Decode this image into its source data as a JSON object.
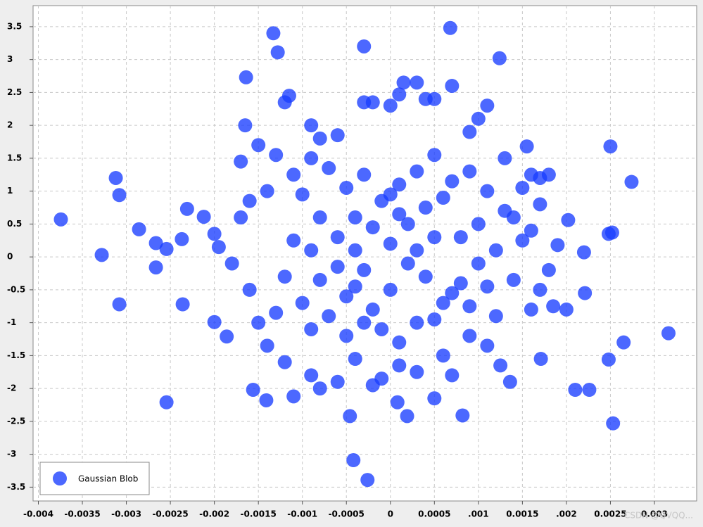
{
  "chart_data": {
    "type": "scatter",
    "xlim": [
      -0.00406,
      0.00348
    ],
    "ylim": [
      -3.71,
      3.82
    ],
    "xticks": [
      -0.004,
      -0.0035,
      -0.003,
      -0.0025,
      -0.002,
      -0.0015,
      -0.001,
      -0.0005,
      0,
      0.0005,
      {
        "value": 0.001,
        "label": ".001"
      },
      0.0015,
      {
        "value": 0.002,
        "label": ".002"
      },
      0.0025,
      0.003
    ],
    "yticks": [
      -3.5,
      -3,
      -2.5,
      -2,
      -1.5,
      -1,
      -0.5,
      0,
      0.5,
      1,
      1.5,
      2,
      2.5,
      3,
      3.5
    ],
    "grid": true,
    "legend": "bottom-left",
    "watermark": "CSDN @QVQQ...",
    "series": [
      {
        "name": "Gaussian Blob",
        "color": "#1a3dff",
        "x": [
          -0.003744,
          -0.00328,
          -0.00312,
          -0.00308,
          -0.00308,
          -0.002856,
          -0.002664,
          -0.002664,
          -0.002544,
          -0.002544,
          -0.00237,
          -0.00231,
          -0.00236,
          -0.00212,
          -0.002,
          -0.00186,
          -0.00164,
          -0.00133,
          -0.00128,
          -0.0003,
          0.00068,
          0.00124,
          0.0025,
          0.00274,
          0.00248,
          0.00252,
          0.00316,
          0.00265,
          0.00248,
          0.00253,
          0.0021,
          0.00226,
          0.00082,
          -0.00046,
          -0.00042,
          -0.00026,
          -0.00141,
          -0.00156,
          -0.0011,
          0.00136,
          0.00171,
          0.0022,
          0.00202,
          0.00221,
          0.00019,
          8e-05,
          -0.0012,
          -0.00115,
          -0.0009,
          -0.0008,
          -0.0006,
          -0.0003,
          -0.0002,
          0,
          0.0001,
          0.00015,
          0.0003,
          0.0004,
          0.0005,
          0.0007,
          0.0011,
          0.001,
          0.0009,
          0.0013,
          0.00155,
          0.0016,
          0.0018,
          0.0017,
          0.0015,
          0.0017,
          0.0014,
          0.0015,
          0.0019,
          0.0018,
          0.0017,
          0.00185,
          0.002,
          0.0016,
          0.0014,
          0.0012,
          0.0011,
          0.00125,
          0.0009,
          0.0007,
          0.0005,
          0.0003,
          0.0001,
          -0.0001,
          -0.0002,
          -0.0004,
          -0.0006,
          -0.0008,
          -0.0009,
          -0.0012,
          -0.0014,
          -0.0015,
          -0.0016,
          -0.0018,
          -0.00195,
          -0.002,
          -0.0017,
          -0.0016,
          -0.0014,
          -0.0013,
          -0.0015,
          -0.0017,
          -0.00165,
          -0.0011,
          -0.001,
          -0.0008,
          -0.0006,
          -0.0004,
          -0.0002,
          0,
          0.0002,
          0.0004,
          0.0006,
          0.0008,
          0.001,
          0.0008,
          0.0006,
          0.0004,
          0.0002,
          0,
          -0.0002,
          -0.0004,
          -0.0006,
          -0.0008,
          -0.001,
          -0.0012,
          -0.0011,
          -0.0009,
          -0.0007,
          -0.0005,
          -0.0003,
          -0.0001,
          0.0001,
          0.0003,
          0.0005,
          0.0007,
          0.0009,
          0.0011,
          0.0012,
          0.001,
          0.0011,
          0.0009,
          0.0007,
          0.0005,
          0.0003,
          0.0001,
          -0.0001,
          -0.0003,
          -0.0005,
          -0.0007,
          -0.0009,
          -0.0004,
          0,
          0.0003,
          0.0005,
          -0.0005,
          -0.0003,
          0.0001,
          -0.0009,
          0.0006,
          -0.0013,
          0.0013,
          0.0016
        ],
        "values": [
          0.57,
          0.03,
          1.2,
          0.94,
          -0.72,
          0.42,
          0.21,
          -0.16,
          0.12,
          -2.21,
          0.27,
          0.73,
          -0.72,
          0.61,
          -0.99,
          -1.21,
          2.73,
          3.4,
          3.11,
          3.2,
          3.48,
          3.02,
          1.68,
          1.14,
          0.35,
          0.37,
          -1.16,
          -1.3,
          -1.56,
          -2.53,
          -2.02,
          -2.02,
          -2.41,
          -2.42,
          -3.09,
          -3.39,
          -2.18,
          -2.02,
          -2.12,
          -1.9,
          -1.55,
          0.07,
          0.56,
          -0.55,
          -2.42,
          -2.21,
          2.35,
          2.45,
          2.0,
          1.8,
          1.85,
          2.35,
          2.35,
          2.3,
          2.47,
          2.65,
          2.65,
          2.4,
          2.4,
          2.6,
          2.3,
          2.1,
          1.9,
          1.5,
          1.68,
          1.25,
          1.25,
          1.2,
          1.05,
          0.8,
          0.6,
          0.25,
          0.18,
          -0.2,
          -0.5,
          -0.75,
          -0.8,
          -0.8,
          -0.35,
          -0.9,
          -1.35,
          -1.65,
          -1.2,
          -1.8,
          -2.15,
          -1.75,
          -1.65,
          -1.85,
          -1.95,
          -1.55,
          -1.9,
          -2.0,
          -1.8,
          -1.6,
          -1.35,
          -1.0,
          -0.5,
          -0.1,
          0.15,
          0.35,
          0.6,
          0.85,
          1.0,
          1.55,
          1.7,
          1.45,
          2.0,
          1.25,
          0.95,
          0.6,
          0.3,
          0.1,
          0.45,
          0.2,
          0.5,
          0.75,
          0.9,
          0.3,
          -0.1,
          -0.4,
          -0.7,
          -0.3,
          -0.1,
          -0.5,
          -0.8,
          -0.45,
          -0.15,
          -0.35,
          -0.7,
          -0.3,
          0.25,
          0.1,
          -0.9,
          -1.2,
          -1.0,
          -1.1,
          -1.3,
          -1.0,
          -0.95,
          -0.55,
          -0.75,
          -0.45,
          0.1,
          0.5,
          1.0,
          1.3,
          1.15,
          1.55,
          1.3,
          1.1,
          0.85,
          1.25,
          1.05,
          1.35,
          1.5,
          0.6,
          0.95,
          0.1,
          0.3,
          -0.6,
          -0.2,
          0.65,
          -1.1,
          -1.5,
          -0.85,
          0.7,
          0.4
        ]
      }
    ]
  }
}
